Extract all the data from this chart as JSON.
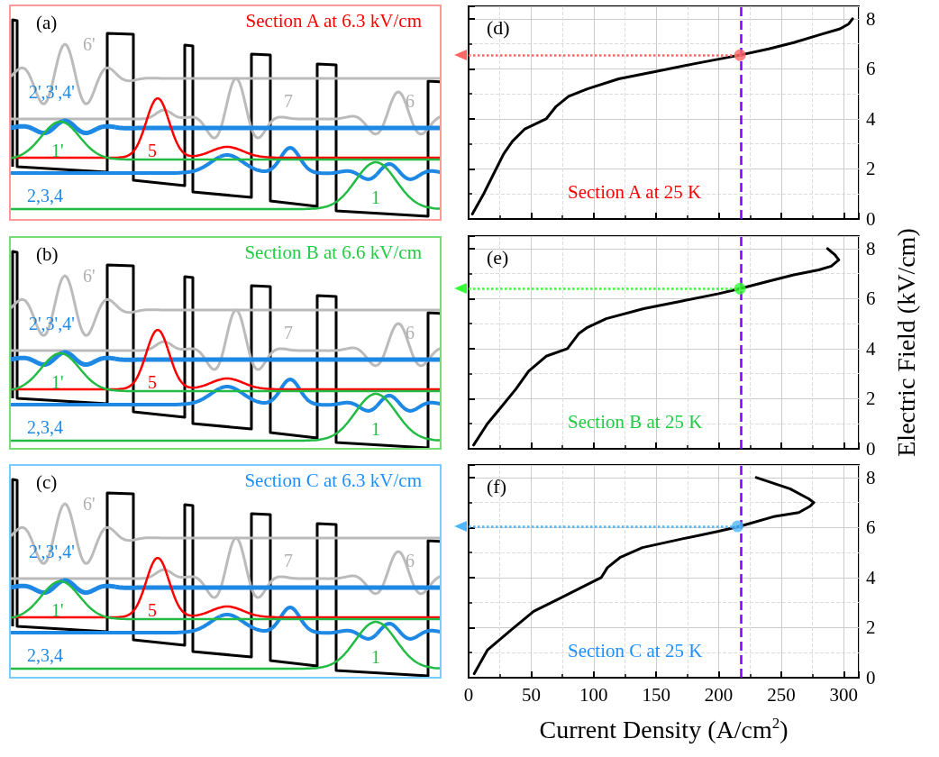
{
  "chart_data": [
    {
      "type": "other",
      "title": "Section A at 6.3 kV/cm",
      "annotations": [
        "(a)",
        "6'",
        "2',3',4'",
        "1'",
        "5",
        "7",
        "6",
        "2,3,4",
        "1"
      ]
    },
    {
      "type": "other",
      "title": "Section B at 6.6 kV/cm",
      "annotations": [
        "(b)",
        "6'",
        "2',3',4'",
        "1'",
        "5",
        "7",
        "6",
        "2,3,4",
        "1"
      ]
    },
    {
      "type": "other",
      "title": "Section C at 6.3 kV/cm",
      "annotations": [
        "(c)",
        "6'",
        "2',3',4'",
        "1'",
        "5",
        "7",
        "6",
        "2,3,4",
        "1"
      ]
    },
    {
      "type": "line",
      "grid": true,
      "tick_labels": "y",
      "xlim": [
        0,
        312
      ],
      "xticks": [
        0,
        50,
        100,
        150,
        200,
        250,
        300
      ],
      "ylim": [
        0,
        8.5
      ],
      "yticks": [
        0,
        2,
        4,
        6,
        8
      ],
      "annotations": [
        "(d)",
        "Section A at 25 K"
      ],
      "ref_lines": [
        {
          "axis": "x",
          "value": 218,
          "color": "#8000ff",
          "line_style": "dashed"
        },
        {
          "axis": "y",
          "value": 6.55,
          "color": "#ff6666",
          "line_style": "dotted"
        }
      ],
      "series": [
        {
          "color": "#000000",
          "marker": "none",
          "x": [
            3,
            12,
            20,
            28,
            35,
            45,
            62,
            70,
            80,
            95,
            120,
            150,
            180,
            217,
            240,
            260,
            280,
            297,
            304,
            307
          ],
          "values": [
            0.2,
            1,
            1.8,
            2.6,
            3.1,
            3.6,
            4.0,
            4.5,
            4.9,
            5.2,
            5.6,
            5.9,
            6.2,
            6.55,
            6.8,
            7.05,
            7.35,
            7.6,
            7.8,
            8.0
          ]
        },
        {
          "type": "scatter",
          "color": "#ff6666",
          "x": [
            217
          ],
          "values": [
            6.55
          ]
        }
      ]
    },
    {
      "type": "line",
      "grid": true,
      "tick_labels": "y",
      "xlim": [
        0,
        312
      ],
      "xticks": [
        0,
        50,
        100,
        150,
        200,
        250,
        300
      ],
      "ylim": [
        0,
        8.5
      ],
      "yticks": [
        0,
        2,
        4,
        6,
        8
      ],
      "ylabel": "Electric Field (kV/cm)",
      "annotations": [
        "(e)",
        "Section B at 25 K"
      ],
      "ref_lines": [
        {
          "axis": "x",
          "value": 218,
          "color": "#8000ff",
          "line_style": "dashed"
        },
        {
          "axis": "y",
          "value": 6.4,
          "color": "#33ff33",
          "line_style": "dotted"
        }
      ],
      "series": [
        {
          "color": "#000000",
          "marker": "none",
          "x": [
            4,
            15,
            25,
            38,
            48,
            62,
            79,
            88,
            95,
            110,
            140,
            170,
            200,
            217,
            240,
            260,
            280,
            290,
            296,
            293,
            287
          ],
          "values": [
            0.15,
            1,
            1.6,
            2.4,
            3.1,
            3.7,
            4.0,
            4.6,
            4.85,
            5.2,
            5.6,
            5.9,
            6.2,
            6.4,
            6.7,
            6.95,
            7.15,
            7.3,
            7.55,
            7.75,
            8.0
          ]
        },
        {
          "type": "scatter",
          "color": "#33ff33",
          "x": [
            217
          ],
          "values": [
            6.4
          ]
        }
      ]
    },
    {
      "type": "line",
      "grid": true,
      "xlim": [
        0,
        312
      ],
      "xticks": [
        0,
        50,
        100,
        150,
        200,
        250,
        300
      ],
      "ylim": [
        0,
        8.5
      ],
      "yticks": [
        0,
        2,
        4,
        6,
        8
      ],
      "xlabel": "Current Density (A/cm$^{2}$)",
      "annotations": [
        "(f)",
        "Section C at 25 K"
      ],
      "ref_lines": [
        {
          "axis": "x",
          "value": 218,
          "color": "#8000ff",
          "line_style": "dashed"
        },
        {
          "axis": "y",
          "value": 6.05,
          "color": "#4db8ff",
          "line_style": "dotted"
        }
      ],
      "series": [
        {
          "color": "#000000",
          "marker": "none",
          "x": [
            4.5,
            15,
            35,
            52,
            72,
            92,
            106,
            111,
            121,
            139,
            171,
            200,
            217,
            245,
            264,
            273,
            276,
            272,
            257,
            230
          ],
          "values": [
            0.16,
            1.1,
            1.95,
            2.65,
            3.15,
            3.65,
            4.0,
            4.4,
            4.8,
            5.2,
            5.55,
            5.85,
            6.05,
            6.45,
            6.6,
            6.85,
            7.0,
            7.15,
            7.55,
            8.0
          ]
        },
        {
          "type": "scatter",
          "color": "#4db8ff",
          "x": [
            215
          ],
          "values": [
            6.05
          ]
        }
      ]
    }
  ]
}
